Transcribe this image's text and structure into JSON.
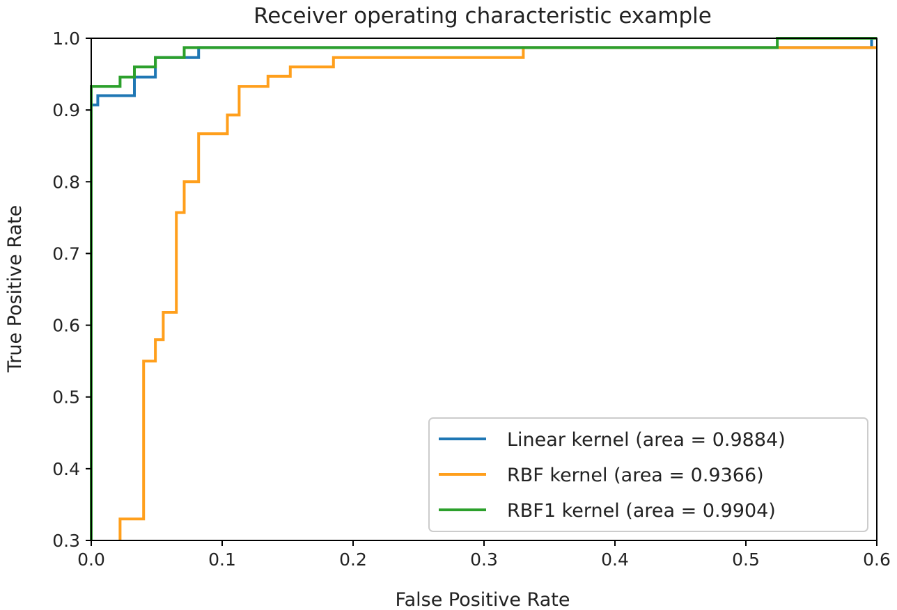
{
  "chart_data": {
    "type": "line",
    "title": "Receiver operating characteristic example",
    "xlabel": "False Positive Rate",
    "ylabel": "True Positive Rate",
    "xlim": [
      0.0,
      0.6
    ],
    "ylim": [
      0.3,
      1.0
    ],
    "xticks": [
      0.0,
      0.1,
      0.2,
      0.3,
      0.4,
      0.5,
      0.6
    ],
    "xtick_labels": [
      "0.0",
      "0.1",
      "0.2",
      "0.3",
      "0.4",
      "0.5",
      "0.6"
    ],
    "yticks": [
      0.3,
      0.4,
      0.5,
      0.6,
      0.7,
      0.8,
      0.9,
      1.0
    ],
    "ytick_labels": [
      "0.3",
      "0.4",
      "0.5",
      "0.6",
      "0.7",
      "0.8",
      "0.9",
      "1.0"
    ],
    "grid": false,
    "legend_position": "lower-right",
    "series": [
      {
        "name": "Linear kernel (area = 0.9884)",
        "color": "#1f77b4",
        "x": [
          0.0,
          0.0,
          0.005,
          0.005,
          0.011,
          0.011,
          0.033,
          0.033,
          0.049,
          0.049,
          0.071,
          0.071,
          0.082,
          0.082,
          0.596,
          0.596,
          0.6
        ],
        "y": [
          0.3,
          0.907,
          0.907,
          0.92,
          0.92,
          0.92,
          0.92,
          0.946,
          0.946,
          0.973,
          0.973,
          0.973,
          0.973,
          0.987,
          0.987,
          1.0,
          1.0
        ]
      },
      {
        "name": "RBF kernel (area = 0.9366)",
        "color": "#ff9f1c",
        "x": [
          0.022,
          0.022,
          0.04,
          0.04,
          0.049,
          0.049,
          0.055,
          0.055,
          0.065,
          0.065,
          0.071,
          0.071,
          0.077,
          0.077,
          0.082,
          0.082,
          0.104,
          0.104,
          0.11,
          0.11,
          0.113,
          0.113,
          0.135,
          0.135,
          0.152,
          0.152,
          0.185,
          0.185,
          0.33,
          0.33,
          0.6
        ],
        "y": [
          0.3,
          0.33,
          0.33,
          0.55,
          0.55,
          0.58,
          0.58,
          0.618,
          0.618,
          0.757,
          0.757,
          0.8,
          0.8,
          0.8,
          0.8,
          0.867,
          0.867,
          0.893,
          0.893,
          0.893,
          0.893,
          0.933,
          0.933,
          0.947,
          0.947,
          0.96,
          0.96,
          0.973,
          0.973,
          0.987,
          0.987
        ]
      },
      {
        "name": "RBF1 kernel (area = 0.9904)",
        "color": "#2ca02c",
        "x": [
          0.0,
          0.0,
          0.022,
          0.022,
          0.033,
          0.033,
          0.049,
          0.049,
          0.071,
          0.071,
          0.524,
          0.524,
          0.6
        ],
        "y": [
          0.3,
          0.933,
          0.933,
          0.946,
          0.946,
          0.96,
          0.96,
          0.973,
          0.973,
          0.987,
          0.987,
          1.0,
          1.0
        ]
      }
    ]
  }
}
